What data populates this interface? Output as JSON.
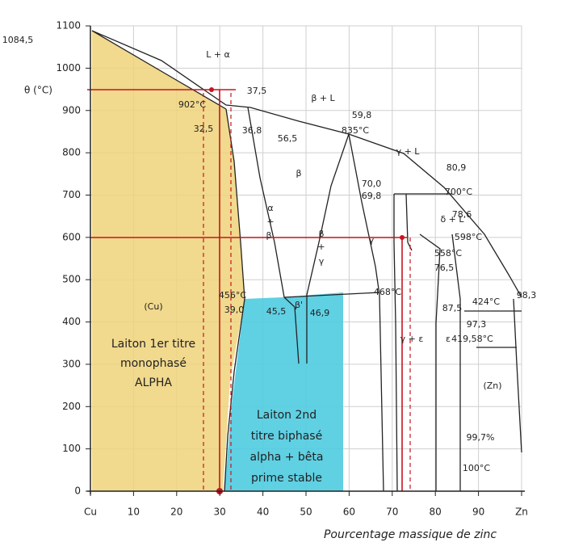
{
  "y_axis": {
    "label": "θ (°C)",
    "ticks": [
      "0",
      "100",
      "200",
      "300",
      "400",
      "500",
      "600",
      "700",
      "800",
      "900",
      "1000",
      "1100"
    ]
  },
  "x_axis": {
    "label": "Pourcentage massique de zinc",
    "ticks": [
      "Cu",
      "10",
      "20",
      "30",
      "40",
      "50",
      "60",
      "70",
      "80",
      "90",
      "Zn"
    ]
  },
  "annotations": [
    "1084,5",
    "L + α",
    "37,5",
    "β + L",
    "902°C",
    "59,8",
    "32,5",
    "36,8",
    "835°C",
    "56,5",
    "β",
    "80,9",
    "γ + L",
    "70,0",
    "69,8",
    "700°C",
    "α",
    "+",
    "β",
    "β",
    "+",
    "γ",
    "γ",
    "δ + L",
    "78,6",
    "598°C",
    "558°C",
    "76,5",
    "(Cu)",
    "456°C",
    "39,0",
    "45,5",
    "β'",
    "46,9",
    "468°C",
    "424°C",
    "98,3",
    "87,5",
    "97,3",
    "γ + ε",
    "ε",
    "419,58°C",
    "(Zn)",
    "99,7%",
    "100°C"
  ],
  "notes": [
    "Laiton 1er titre",
    "monophasé",
    "ALPHA",
    "Laiton 2nd",
    "titre biphasé",
    "alpha + bêta",
    "prime stable"
  ]
}
